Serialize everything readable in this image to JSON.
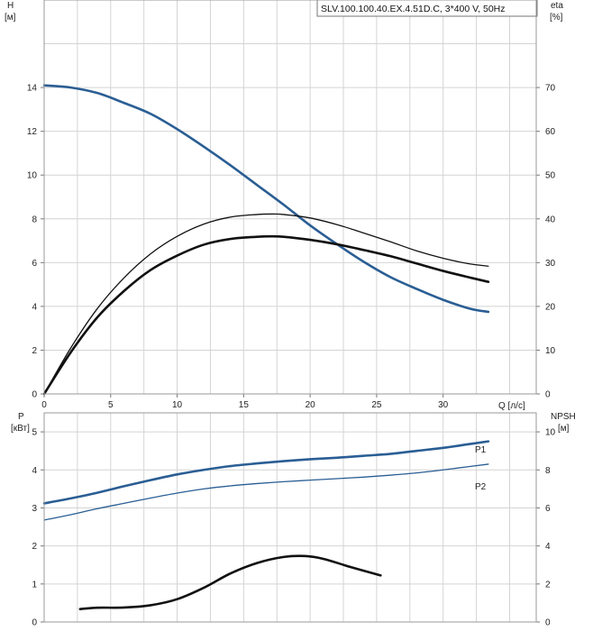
{
  "chart_data": [
    {
      "type": "line",
      "title": "SLV.100.100.40.EX.4.51D.C, 3*400 V, 50Hz",
      "xlabel": "Q [л/с]",
      "ylabel_left": {
        "name": "H",
        "unit": "[м]"
      },
      "ylabel_right": {
        "name": "eta",
        "unit": "[%]"
      },
      "xlim": [
        0,
        37
      ],
      "xticks": [
        0,
        5,
        10,
        15,
        20,
        25,
        30
      ],
      "ylim_left": [
        0,
        18
      ],
      "yticks_left": [
        0,
        2,
        4,
        6,
        8,
        10,
        12,
        14
      ],
      "ylim_right": [
        0,
        90
      ],
      "yticks_right": [
        0,
        10,
        20,
        30,
        40,
        50,
        60,
        70
      ],
      "grid": true,
      "series": [
        {
          "axis": "left",
          "color": "#2a5e94",
          "style": "thick",
          "x": [
            0,
            2,
            4,
            6,
            8,
            10,
            12,
            14,
            16,
            18,
            20,
            22,
            24,
            26,
            28,
            30,
            32,
            33.4
          ],
          "y": [
            14.1,
            14.0,
            13.75,
            13.3,
            12.8,
            12.1,
            11.3,
            10.45,
            9.55,
            8.65,
            7.7,
            6.85,
            6.05,
            5.35,
            4.8,
            4.3,
            3.9,
            3.75
          ]
        },
        {
          "axis": "right",
          "color": "#111111",
          "style": "thin",
          "x": [
            0,
            2,
            4,
            6,
            8,
            10,
            12,
            14,
            16,
            17,
            18,
            20,
            22,
            24,
            26,
            28,
            30,
            32,
            33.4
          ],
          "y": [
            0,
            10.5,
            19.5,
            26.5,
            32,
            36,
            38.8,
            40.4,
            41.0,
            41.1,
            41.0,
            40.2,
            38.7,
            36.8,
            34.8,
            32.7,
            31.0,
            29.7,
            29.2
          ]
        },
        {
          "axis": "right",
          "color": "#111111",
          "style": "thick",
          "x": [
            0,
            2,
            4,
            6,
            8,
            10,
            12,
            14,
            16,
            17,
            18,
            20,
            22,
            24,
            26,
            28,
            30,
            32,
            33.4
          ],
          "y": [
            0,
            9.5,
            17.5,
            23.5,
            28.3,
            31.6,
            34.1,
            35.4,
            35.9,
            36.0,
            35.9,
            35.2,
            34.2,
            32.9,
            31.5,
            29.8,
            28.1,
            26.6,
            25.6
          ]
        }
      ]
    },
    {
      "type": "line",
      "xlim": [
        0,
        37
      ],
      "ylabel_left": {
        "name": "P",
        "unit": "[кВт]"
      },
      "ylabel_right": {
        "name": "NPSH",
        "unit": "[м]"
      },
      "ylim_left": [
        0,
        5.5
      ],
      "yticks_left": [
        0,
        1,
        2,
        3,
        4,
        5
      ],
      "ylim_right": [
        0,
        11
      ],
      "yticks_right": [
        0,
        2,
        4,
        6,
        8,
        10
      ],
      "grid": true,
      "series": [
        {
          "name": "P1",
          "axis": "left",
          "color": "#2a5e94",
          "style": "thick",
          "x": [
            0,
            2,
            4,
            6,
            8,
            10,
            12,
            14,
            16,
            18,
            20,
            22,
            24,
            26,
            28,
            30,
            32,
            33.4
          ],
          "y": [
            3.12,
            3.25,
            3.4,
            3.57,
            3.73,
            3.88,
            4.0,
            4.1,
            4.17,
            4.23,
            4.28,
            4.32,
            4.37,
            4.42,
            4.5,
            4.58,
            4.68,
            4.75
          ]
        },
        {
          "name": "P2",
          "axis": "left",
          "color": "#2a5e94",
          "style": "thin",
          "x": [
            0,
            2,
            4,
            6,
            8,
            10,
            12,
            14,
            16,
            18,
            20,
            22,
            24,
            26,
            28,
            30,
            32,
            33.4
          ],
          "y": [
            2.68,
            2.82,
            2.98,
            3.12,
            3.26,
            3.39,
            3.5,
            3.58,
            3.64,
            3.69,
            3.73,
            3.77,
            3.81,
            3.86,
            3.92,
            4.0,
            4.09,
            4.15
          ]
        },
        {
          "axis": "right",
          "color": "#111111",
          "style": "thick",
          "x": [
            2.7,
            4,
            6,
            8,
            10,
            12,
            14,
            16,
            18,
            19.6,
            21,
            23,
            25.3
          ],
          "y": [
            0.68,
            0.75,
            0.76,
            0.88,
            1.2,
            1.8,
            2.55,
            3.1,
            3.42,
            3.47,
            3.32,
            2.9,
            2.45
          ]
        }
      ]
    }
  ]
}
